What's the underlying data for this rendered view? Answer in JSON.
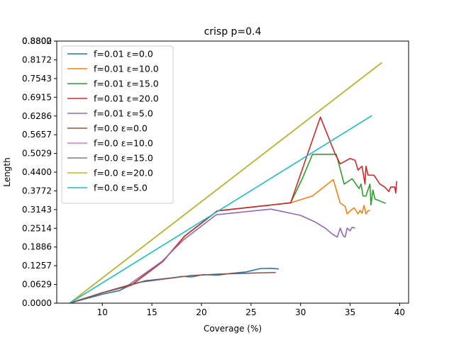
{
  "chart_data": {
    "type": "line",
    "title": "crisp p=0.4",
    "xlabel": "Coverage (%)",
    "ylabel": "Length",
    "xlim": [
      5.4,
      40.9
    ],
    "ylim": [
      0.0,
      0.8802
    ],
    "xticks": [
      10,
      15,
      20,
      25,
      30,
      35,
      40
    ],
    "yticks": [
      {
        "value": 0.0,
        "label": "0.0000"
      },
      {
        "value": 0.0629,
        "label": "0.0629"
      },
      {
        "value": 0.1257,
        "label": "0.1257"
      },
      {
        "value": 0.1886,
        "label": "0.1886"
      },
      {
        "value": 0.2514,
        "label": "0.2514"
      },
      {
        "value": 0.3143,
        "label": "0.3143"
      },
      {
        "value": 0.3772,
        "label": "0.3772"
      },
      {
        "value": 0.44,
        "label": "0.4400"
      },
      {
        "value": 0.5029,
        "label": "0.5029"
      },
      {
        "value": 0.5657,
        "label": "0.5657"
      },
      {
        "value": 0.6286,
        "label": "0.6286"
      },
      {
        "value": 0.6915,
        "label": "0.6915"
      },
      {
        "value": 0.7543,
        "label": "0.7543"
      },
      {
        "value": 0.8172,
        "label": "0.8172"
      },
      {
        "value": 0.88,
        "label": "0.8800"
      },
      {
        "value": 0.8802,
        "label": "0.8802"
      }
    ],
    "grid": false,
    "legend_position": "top-left",
    "series": [
      {
        "name": "f=0.01 ε=0.0",
        "color": "#1f77b4",
        "points": [
          [
            6.7,
            0.0
          ],
          [
            10.0,
            0.03
          ],
          [
            11.7,
            0.042
          ],
          [
            12.8,
            0.06
          ],
          [
            14.3,
            0.075
          ],
          [
            17.0,
            0.085
          ],
          [
            18.1,
            0.09
          ],
          [
            19.0,
            0.088
          ],
          [
            20.2,
            0.096
          ],
          [
            21.6,
            0.094
          ],
          [
            23.0,
            0.1
          ],
          [
            24.5,
            0.105
          ],
          [
            25.9,
            0.116
          ],
          [
            27.0,
            0.117
          ],
          [
            27.8,
            0.115
          ]
        ]
      },
      {
        "name": "f=0.01 ε=10.0",
        "color": "#ff7f0e",
        "points": [
          [
            6.7,
            0.0
          ],
          [
            10.0,
            0.035
          ],
          [
            12.9,
            0.06
          ],
          [
            16.1,
            0.14
          ],
          [
            18.3,
            0.225
          ],
          [
            21.6,
            0.31
          ],
          [
            29.0,
            0.337
          ],
          [
            31.2,
            0.36
          ],
          [
            33.3,
            0.415
          ],
          [
            34.0,
            0.336
          ],
          [
            34.5,
            0.325
          ],
          [
            34.7,
            0.3
          ],
          [
            35.0,
            0.31
          ],
          [
            35.4,
            0.32
          ],
          [
            35.8,
            0.3
          ],
          [
            36.0,
            0.312
          ],
          [
            36.2,
            0.302
          ],
          [
            36.4,
            0.328
          ],
          [
            36.6,
            0.3
          ],
          [
            36.8,
            0.31
          ],
          [
            37.0,
            0.312
          ]
        ]
      },
      {
        "name": "f=0.01 ε=15.0",
        "color": "#2ca02c",
        "points": [
          [
            6.7,
            0.0
          ],
          [
            10.0,
            0.035
          ],
          [
            12.9,
            0.06
          ],
          [
            16.1,
            0.14
          ],
          [
            18.3,
            0.225
          ],
          [
            21.6,
            0.31
          ],
          [
            29.0,
            0.337
          ],
          [
            30.2,
            0.42
          ],
          [
            31.2,
            0.5
          ],
          [
            33.6,
            0.5
          ],
          [
            34.4,
            0.4
          ],
          [
            35.2,
            0.418
          ],
          [
            35.9,
            0.385
          ],
          [
            36.1,
            0.4
          ],
          [
            36.3,
            0.36
          ],
          [
            36.6,
            0.36
          ],
          [
            37.0,
            0.4
          ],
          [
            37.1,
            0.33
          ],
          [
            37.3,
            0.38
          ],
          [
            37.5,
            0.35
          ],
          [
            38.6,
            0.335
          ]
        ]
      },
      {
        "name": "f=0.01 ε=20.0",
        "color": "#d62728",
        "points": [
          [
            6.7,
            0.0
          ],
          [
            10.0,
            0.035
          ],
          [
            12.9,
            0.06
          ],
          [
            16.1,
            0.14
          ],
          [
            18.3,
            0.225
          ],
          [
            21.6,
            0.31
          ],
          [
            29.0,
            0.337
          ],
          [
            32.0,
            0.625
          ],
          [
            33.5,
            0.5
          ],
          [
            34.0,
            0.468
          ],
          [
            35.0,
            0.486
          ],
          [
            35.5,
            0.48
          ],
          [
            35.8,
            0.447
          ],
          [
            36.2,
            0.46
          ],
          [
            36.5,
            0.4
          ],
          [
            36.6,
            0.46
          ],
          [
            36.8,
            0.43
          ],
          [
            37.4,
            0.43
          ],
          [
            38.0,
            0.4
          ],
          [
            38.5,
            0.39
          ],
          [
            38.9,
            0.375
          ],
          [
            39.1,
            0.39
          ],
          [
            39.5,
            0.39
          ],
          [
            39.6,
            0.37
          ],
          [
            39.7,
            0.41
          ]
        ]
      },
      {
        "name": "f=0.01 ε=5.0",
        "color": "#9467bd",
        "points": [
          [
            6.7,
            0.0
          ],
          [
            10.0,
            0.035
          ],
          [
            12.6,
            0.06
          ],
          [
            16.0,
            0.14
          ],
          [
            18.2,
            0.213
          ],
          [
            21.5,
            0.297
          ],
          [
            27.0,
            0.316
          ],
          [
            30.0,
            0.295
          ],
          [
            31.5,
            0.272
          ],
          [
            32.5,
            0.252
          ],
          [
            33.2,
            0.232
          ],
          [
            33.7,
            0.222
          ],
          [
            34.0,
            0.252
          ],
          [
            34.3,
            0.226
          ],
          [
            34.5,
            0.222
          ],
          [
            34.7,
            0.252
          ],
          [
            35.0,
            0.243
          ],
          [
            35.2,
            0.255
          ],
          [
            35.5,
            0.252
          ]
        ]
      },
      {
        "name": "f=0.0 ε=0.0",
        "color": "#8c564b",
        "points": [
          [
            6.7,
            0.0
          ],
          [
            10.0,
            0.035
          ],
          [
            13.7,
            0.07
          ],
          [
            16.0,
            0.08
          ],
          [
            19.0,
            0.093
          ],
          [
            22.0,
            0.098
          ],
          [
            25.0,
            0.101
          ],
          [
            27.5,
            0.103
          ]
        ]
      },
      {
        "name": "f=0.0 ε=10.0",
        "color": "#e377c2",
        "points": [
          [
            6.7,
            0.0
          ],
          [
            38.2,
            0.808
          ]
        ]
      },
      {
        "name": "f=0.0 ε=15.0",
        "color": "#7f7f7f",
        "points": [
          [
            6.7,
            0.0
          ],
          [
            38.2,
            0.808
          ]
        ]
      },
      {
        "name": "f=0.0 ε=20.0",
        "color": "#bcbd22",
        "points": [
          [
            6.7,
            0.0
          ],
          [
            38.2,
            0.808
          ]
        ]
      },
      {
        "name": "f=0.0 ε=5.0",
        "color": "#17becf",
        "points": [
          [
            6.7,
            0.0
          ],
          [
            37.2,
            0.63
          ]
        ]
      }
    ]
  }
}
